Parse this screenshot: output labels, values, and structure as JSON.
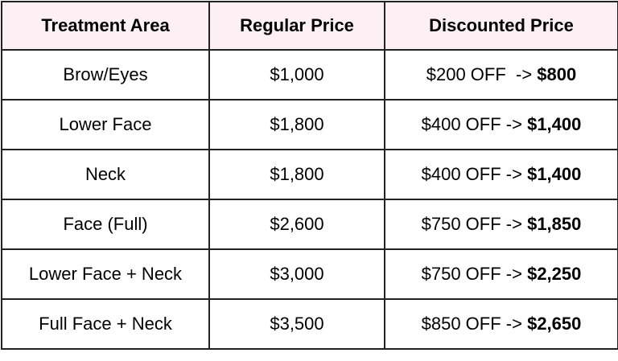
{
  "colors": {
    "header_bg": "#fdf0f5",
    "border": "#222222"
  },
  "headers": [
    "Treatment Area",
    "Regular Price",
    "Discounted Price"
  ],
  "rows": [
    {
      "area": "Brow/Eyes",
      "regular": "$1,000",
      "discount": "$200 OFF  -> ",
      "final": "$800"
    },
    {
      "area": "Lower Face",
      "regular": "$1,800",
      "discount": "$400 OFF -> ",
      "final": "$1,400"
    },
    {
      "area": "Neck",
      "regular": "$1,800",
      "discount": "$400 OFF -> ",
      "final": "$1,400"
    },
    {
      "area": "Face (Full)",
      "regular": "$2,600",
      "discount": "$750 OFF -> ",
      "final": "$1,850"
    },
    {
      "area": "Lower Face + Neck",
      "regular": "$3,000",
      "discount": "$750 OFF -> ",
      "final": "$2,250"
    },
    {
      "area": "Full Face + Neck",
      "regular": "$3,500",
      "discount": "$850 OFF -> ",
      "final": "$2,650"
    }
  ]
}
